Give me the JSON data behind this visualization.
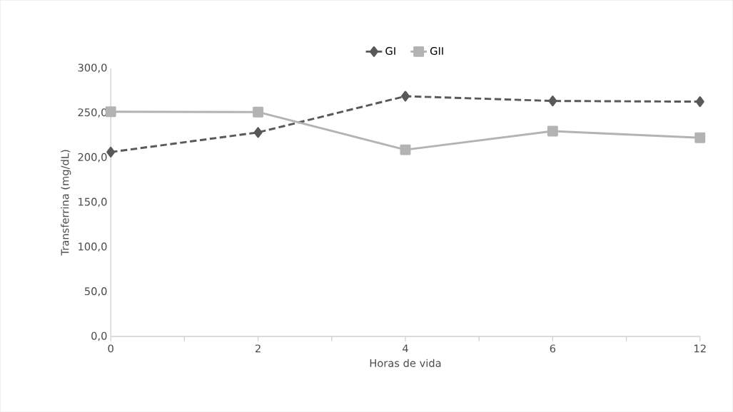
{
  "chart_data": {
    "type": "line",
    "xlabel": "Horas de vida",
    "ylabel": "Transferrina (mg/dL)",
    "categories": [
      "0",
      "2",
      "4",
      "6",
      "12"
    ],
    "series": [
      {
        "name": "GI",
        "color": "#595959",
        "marker": "diamond",
        "line_style": "dashed",
        "values": [
          206.2,
          228.2,
          268.7,
          263.4,
          262.6
        ]
      },
      {
        "name": "GII",
        "color": "#b3b3b3",
        "marker": "square",
        "line_style": "solid",
        "values": [
          251.4,
          251.0,
          208.8,
          229.6,
          222.2
        ]
      }
    ],
    "ylim": [
      0,
      300
    ],
    "yticks": [
      {
        "value": 0,
        "label": "0,0"
      },
      {
        "value": 50,
        "label": "50,0"
      },
      {
        "value": 100,
        "label": "100,0"
      },
      {
        "value": 150,
        "label": "150,0"
      },
      {
        "value": 200,
        "label": "200,0"
      },
      {
        "value": 250,
        "label": "250,0"
      },
      {
        "value": 300,
        "label": "300,0"
      }
    ],
    "grid": false,
    "legend": "top"
  }
}
